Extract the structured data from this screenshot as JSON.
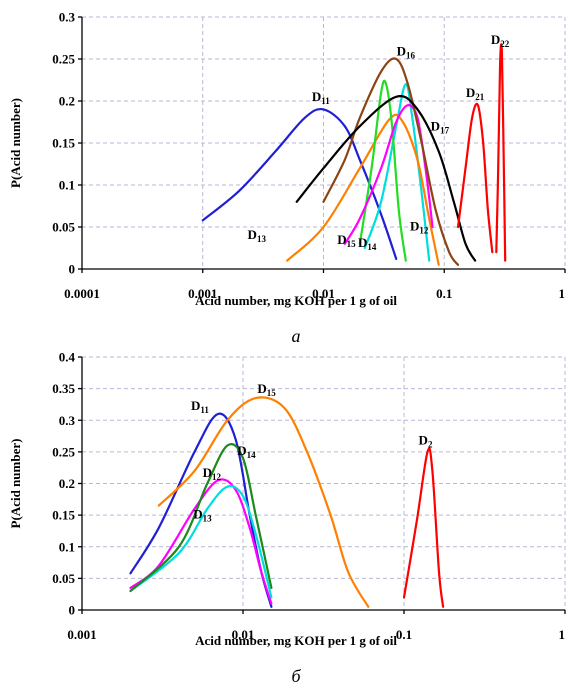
{
  "chart_data": [
    {
      "type": "line",
      "title": "",
      "caption": "a",
      "xlabel": "Acid number,  mg KOH per 1 g of oil",
      "ylabel": "P(Acid number)",
      "xscale": "log",
      "xlim": [
        0.0001,
        1
      ],
      "ylim": [
        0,
        0.3
      ],
      "xticks": [
        {
          "value": 0.0001,
          "label": "0.0001"
        },
        {
          "value": 0.001,
          "label": "0.001"
        },
        {
          "value": 0.01,
          "label": "0.01"
        },
        {
          "value": 0.1,
          "label": "0.1"
        },
        {
          "value": 1,
          "label": "1"
        }
      ],
      "yticks": [
        {
          "value": 0,
          "label": "0"
        },
        {
          "value": 0.05,
          "label": "0.05"
        },
        {
          "value": 0.1,
          "label": "0.1"
        },
        {
          "value": 0.15,
          "label": "0.15"
        },
        {
          "value": 0.2,
          "label": "0.2"
        },
        {
          "value": 0.25,
          "label": "0.25"
        },
        {
          "value": 0.3,
          "label": "0.3"
        }
      ],
      "grid": true,
      "series": [
        {
          "name": "D11",
          "main": "D",
          "sub": "11",
          "color": "#1f1fd6",
          "lx": 0.0095,
          "ly": 0.2,
          "points": [
            [
              0.001,
              0.058
            ],
            [
              0.002,
              0.093
            ],
            [
              0.004,
              0.14
            ],
            [
              0.007,
              0.18
            ],
            [
              0.01,
              0.19
            ],
            [
              0.015,
              0.17
            ],
            [
              0.02,
              0.13
            ],
            [
              0.03,
              0.065
            ],
            [
              0.04,
              0.012
            ]
          ]
        },
        {
          "name": "D12",
          "main": "D",
          "sub": "12",
          "color": "#00dddd",
          "lx": 0.062,
          "ly": 0.046,
          "points": [
            [
              0.022,
              0.025
            ],
            [
              0.03,
              0.08
            ],
            [
              0.04,
              0.17
            ],
            [
              0.048,
              0.22
            ],
            [
              0.055,
              0.175
            ],
            [
              0.065,
              0.09
            ],
            [
              0.075,
              0.01
            ]
          ]
        },
        {
          "name": "D13",
          "main": "D",
          "sub": "13",
          "color": "#ff8000",
          "lx": 0.0028,
          "ly": 0.036,
          "points": [
            [
              0.005,
              0.01
            ],
            [
              0.01,
              0.05
            ],
            [
              0.02,
              0.12
            ],
            [
              0.035,
              0.178
            ],
            [
              0.045,
              0.176
            ],
            [
              0.06,
              0.13
            ],
            [
              0.075,
              0.06
            ],
            [
              0.09,
              0.005
            ]
          ]
        },
        {
          "name": "D14",
          "main": "D",
          "sub": "14",
          "color": "#22dd22",
          "lx": 0.023,
          "ly": 0.026,
          "points": [
            [
              0.02,
              0.03
            ],
            [
              0.025,
              0.12
            ],
            [
              0.03,
              0.21
            ],
            [
              0.033,
              0.22
            ],
            [
              0.037,
              0.17
            ],
            [
              0.042,
              0.07
            ],
            [
              0.048,
              0.01
            ]
          ]
        },
        {
          "name": "D15",
          "main": "D",
          "sub": "15",
          "color": "#ff00ff",
          "lx": 0.0155,
          "ly": 0.03,
          "points": [
            [
              0.015,
              0.03
            ],
            [
              0.02,
              0.06
            ],
            [
              0.03,
              0.12
            ],
            [
              0.04,
              0.175
            ],
            [
              0.05,
              0.195
            ],
            [
              0.06,
              0.18
            ],
            [
              0.07,
              0.12
            ],
            [
              0.08,
              0.05
            ]
          ]
        },
        {
          "name": "D16",
          "main": "D",
          "sub": "16",
          "color": "#8b4513",
          "lx": 0.048,
          "ly": 0.254,
          "points": [
            [
              0.01,
              0.08
            ],
            [
              0.015,
              0.13
            ],
            [
              0.02,
              0.18
            ],
            [
              0.03,
              0.235
            ],
            [
              0.04,
              0.25
            ],
            [
              0.05,
              0.22
            ],
            [
              0.065,
              0.15
            ],
            [
              0.085,
              0.07
            ],
            [
              0.11,
              0.02
            ],
            [
              0.13,
              0.005
            ]
          ]
        },
        {
          "name": "D17",
          "main": "D",
          "sub": "17",
          "color": "#000000",
          "lx": 0.092,
          "ly": 0.165,
          "points": [
            [
              0.006,
              0.08
            ],
            [
              0.01,
              0.12
            ],
            [
              0.02,
              0.17
            ],
            [
              0.04,
              0.205
            ],
            [
              0.06,
              0.19
            ],
            [
              0.09,
              0.14
            ],
            [
              0.12,
              0.08
            ],
            [
              0.15,
              0.03
            ],
            [
              0.18,
              0.01
            ]
          ]
        },
        {
          "name": "D21",
          "main": "D",
          "sub": "21",
          "color": "#ff0000",
          "lx": 0.18,
          "ly": 0.205,
          "points": [
            [
              0.13,
              0.05
            ],
            [
              0.15,
              0.12
            ],
            [
              0.17,
              0.18
            ],
            [
              0.19,
              0.195
            ],
            [
              0.21,
              0.15
            ],
            [
              0.23,
              0.07
            ],
            [
              0.25,
              0.02
            ]
          ]
        },
        {
          "name": "D22",
          "main": "D",
          "sub": "22",
          "color": "#ff0000",
          "lx": 0.29,
          "ly": 0.268,
          "points": [
            [
              0.27,
              0.02
            ],
            [
              0.28,
              0.12
            ],
            [
              0.29,
              0.245
            ],
            [
              0.3,
              0.258
            ],
            [
              0.31,
              0.14
            ],
            [
              0.32,
              0.01
            ]
          ]
        }
      ]
    },
    {
      "type": "line",
      "title": "",
      "caption": "б",
      "xlabel": "Acid number,  mg KOH per 1 g of oil",
      "ylabel": "P(Acid number)",
      "xscale": "log",
      "xlim": [
        0.001,
        1
      ],
      "ylim": [
        0,
        0.4
      ],
      "xticks": [
        {
          "value": 0.001,
          "label": "0.001"
        },
        {
          "value": 0.01,
          "label": "0.01"
        },
        {
          "value": 0.1,
          "label": "0.1"
        },
        {
          "value": 1,
          "label": "1"
        }
      ],
      "yticks": [
        {
          "value": 0,
          "label": "0"
        },
        {
          "value": 0.05,
          "label": "0.05"
        },
        {
          "value": 0.1,
          "label": "0.1"
        },
        {
          "value": 0.15,
          "label": "0.15"
        },
        {
          "value": 0.2,
          "label": "0.2"
        },
        {
          "value": 0.25,
          "label": "0.25"
        },
        {
          "value": 0.3,
          "label": "0.3"
        },
        {
          "value": 0.35,
          "label": "0.35"
        },
        {
          "value": 0.4,
          "label": "0.4"
        }
      ],
      "grid": true,
      "series": [
        {
          "name": "D11",
          "main": "D",
          "sub": "11",
          "color": "#1f1fd6",
          "lx": 0.0054,
          "ly": 0.316,
          "points": [
            [
              0.002,
              0.058
            ],
            [
              0.003,
              0.13
            ],
            [
              0.005,
              0.25
            ],
            [
              0.007,
              0.31
            ],
            [
              0.009,
              0.27
            ],
            [
              0.011,
              0.15
            ],
            [
              0.013,
              0.06
            ],
            [
              0.015,
              0.005
            ]
          ]
        },
        {
          "name": "D12",
          "main": "D",
          "sub": "12",
          "color": "#ff00ff",
          "lx": 0.0064,
          "ly": 0.21,
          "points": [
            [
              0.002,
              0.035
            ],
            [
              0.003,
              0.07
            ],
            [
              0.005,
              0.16
            ],
            [
              0.007,
              0.205
            ],
            [
              0.009,
              0.19
            ],
            [
              0.011,
              0.13
            ],
            [
              0.013,
              0.06
            ],
            [
              0.015,
              0.01
            ]
          ]
        },
        {
          "name": "D13",
          "main": "D",
          "sub": "13",
          "color": "#00dddd",
          "lx": 0.0056,
          "ly": 0.145,
          "points": [
            [
              0.002,
              0.03
            ],
            [
              0.004,
              0.09
            ],
            [
              0.006,
              0.16
            ],
            [
              0.008,
              0.195
            ],
            [
              0.01,
              0.18
            ],
            [
              0.012,
              0.12
            ],
            [
              0.015,
              0.02
            ]
          ]
        },
        {
          "name": "D14",
          "main": "D",
          "sub": "14",
          "color": "#1a8a1a",
          "lx": 0.0105,
          "ly": 0.245,
          "points": [
            [
              0.002,
              0.03
            ],
            [
              0.004,
              0.1
            ],
            [
              0.006,
              0.2
            ],
            [
              0.008,
              0.26
            ],
            [
              0.01,
              0.24
            ],
            [
              0.012,
              0.15
            ],
            [
              0.015,
              0.035
            ]
          ]
        },
        {
          "name": "D15",
          "main": "D",
          "sub": "15",
          "color": "#ff8000",
          "lx": 0.014,
          "ly": 0.343,
          "points": [
            [
              0.003,
              0.165
            ],
            [
              0.005,
              0.22
            ],
            [
              0.008,
              0.3
            ],
            [
              0.012,
              0.335
            ],
            [
              0.018,
              0.32
            ],
            [
              0.025,
              0.25
            ],
            [
              0.035,
              0.15
            ],
            [
              0.045,
              0.06
            ],
            [
              0.06,
              0.005
            ]
          ]
        },
        {
          "name": "D2",
          "main": "D",
          "sub": "2",
          "color": "#ff0000",
          "lx": 0.136,
          "ly": 0.262,
          "points": [
            [
              0.1,
              0.02
            ],
            [
              0.12,
              0.14
            ],
            [
              0.14,
              0.25
            ],
            [
              0.15,
              0.22
            ],
            [
              0.165,
              0.06
            ],
            [
              0.175,
              0.005
            ]
          ]
        }
      ]
    }
  ]
}
